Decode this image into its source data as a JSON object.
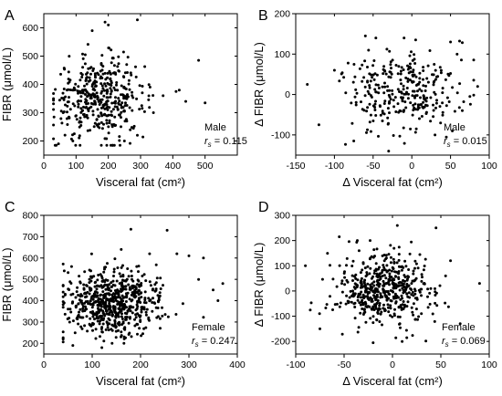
{
  "chart_data": [
    {
      "type": "scatter",
      "panel_label": "A",
      "xlabel": "Visceral fat (cm²)",
      "ylabel": "FIBR (μmol/L)",
      "xlim": [
        0,
        600
      ],
      "ylim": [
        150,
        650
      ],
      "xticks": [
        "0",
        "100",
        "200",
        "300",
        "400",
        "500"
      ],
      "yticks": [
        "200",
        "300",
        "400",
        "500",
        "600"
      ],
      "annotation_group": "Male",
      "annotation_stat_label": "r",
      "annotation_stat_sub": "s",
      "annotation_stat_value": " = 0.115",
      "cloud": {
        "n": 420,
        "x_mean": 175,
        "x_sd": 70,
        "y_mean": 350,
        "y_sd": 70,
        "x_min": 30,
        "x_max": 360,
        "y_min": 185,
        "y_max": 580
      },
      "points": [
        [
          190,
          620
        ],
        [
          290,
          628
        ],
        [
          200,
          610
        ],
        [
          480,
          485
        ],
        [
          500,
          335
        ],
        [
          410,
          375
        ],
        [
          370,
          360
        ],
        [
          440,
          340
        ],
        [
          340,
          300
        ],
        [
          60,
          300
        ],
        [
          420,
          380
        ],
        [
          150,
          590
        ],
        [
          250,
          200
        ],
        [
          90,
          200
        ]
      ]
    },
    {
      "type": "scatter",
      "panel_label": "B",
      "xlabel": "Δ Visceral fat (cm²)",
      "ylabel": "Δ FIBR (μmol/L)",
      "xlim": [
        -150,
        100
      ],
      "ylim": [
        -150,
        200
      ],
      "xticks": [
        "-150",
        "-100",
        "-50",
        "0",
        "50",
        "100"
      ],
      "yticks": [
        "-100",
        "0",
        "100",
        "200"
      ],
      "annotation_group": "Male",
      "annotation_stat_label": "r",
      "annotation_stat_sub": "s",
      "annotation_stat_value": " = 0.015",
      "cloud": {
        "n": 300,
        "x_mean": -10,
        "x_sd": 35,
        "y_mean": 5,
        "y_sd": 50,
        "x_min": -125,
        "x_max": 80,
        "y_min": -140,
        "y_max": 140
      },
      "points": [
        [
          -60,
          145
        ],
        [
          -10,
          140
        ],
        [
          5,
          135
        ],
        [
          50,
          130
        ],
        [
          -135,
          25
        ],
        [
          -120,
          -75
        ],
        [
          -75,
          -115
        ],
        [
          -30,
          -140
        ],
        [
          85,
          20
        ],
        [
          75,
          -5
        ],
        [
          -100,
          60
        ],
        [
          30,
          -100
        ]
      ]
    },
    {
      "type": "scatter",
      "panel_label": "C",
      "xlabel": "Visceral fat (cm²)",
      "ylabel": "FIBR (μmol/L)",
      "xlim": [
        0,
        400
      ],
      "ylim": [
        150,
        800
      ],
      "xticks": [
        "0",
        "100",
        "200",
        "300",
        "400"
      ],
      "yticks": [
        "200",
        "300",
        "400",
        "500",
        "600",
        "700",
        "800"
      ],
      "annotation_group": "Female",
      "annotation_stat_label": "r",
      "annotation_stat_sub": "s",
      "annotation_stat_value": " = 0.247",
      "cloud": {
        "n": 650,
        "x_mean": 140,
        "x_sd": 50,
        "y_mean": 390,
        "y_sd": 75,
        "x_min": 40,
        "x_max": 330,
        "y_min": 200,
        "y_max": 650
      },
      "points": [
        [
          180,
          735
        ],
        [
          255,
          730
        ],
        [
          160,
          640
        ],
        [
          330,
          600
        ],
        [
          370,
          480
        ],
        [
          350,
          450
        ],
        [
          320,
          500
        ],
        [
          300,
          610
        ],
        [
          275,
          620
        ],
        [
          40,
          220
        ],
        [
          60,
          190
        ],
        [
          120,
          180
        ],
        [
          360,
          400
        ]
      ]
    },
    {
      "type": "scatter",
      "panel_label": "D",
      "xlabel": "Δ Visceral fat (cm²)",
      "ylabel": "Δ FIBR (μmol/L)",
      "xlim": [
        -100,
        100
      ],
      "ylim": [
        -250,
        300
      ],
      "xticks": [
        "-100",
        "-50",
        "0",
        "50",
        "100"
      ],
      "yticks": [
        "-200",
        "-100",
        "0",
        "100",
        "200",
        "300"
      ],
      "annotation_group": "Female",
      "annotation_stat_label": "r",
      "annotation_stat_sub": "s",
      "annotation_stat_value": " = 0.069",
      "cloud": {
        "n": 520,
        "x_mean": -8,
        "x_sd": 25,
        "y_mean": 5,
        "y_sd": 65,
        "x_min": -85,
        "x_max": 75,
        "y_min": -200,
        "y_max": 200
      },
      "points": [
        [
          5,
          260
        ],
        [
          45,
          250
        ],
        [
          -55,
          215
        ],
        [
          -20,
          -205
        ],
        [
          10,
          -200
        ],
        [
          -90,
          100
        ],
        [
          90,
          30
        ],
        [
          70,
          -130
        ],
        [
          -75,
          -150
        ],
        [
          60,
          120
        ]
      ]
    }
  ]
}
